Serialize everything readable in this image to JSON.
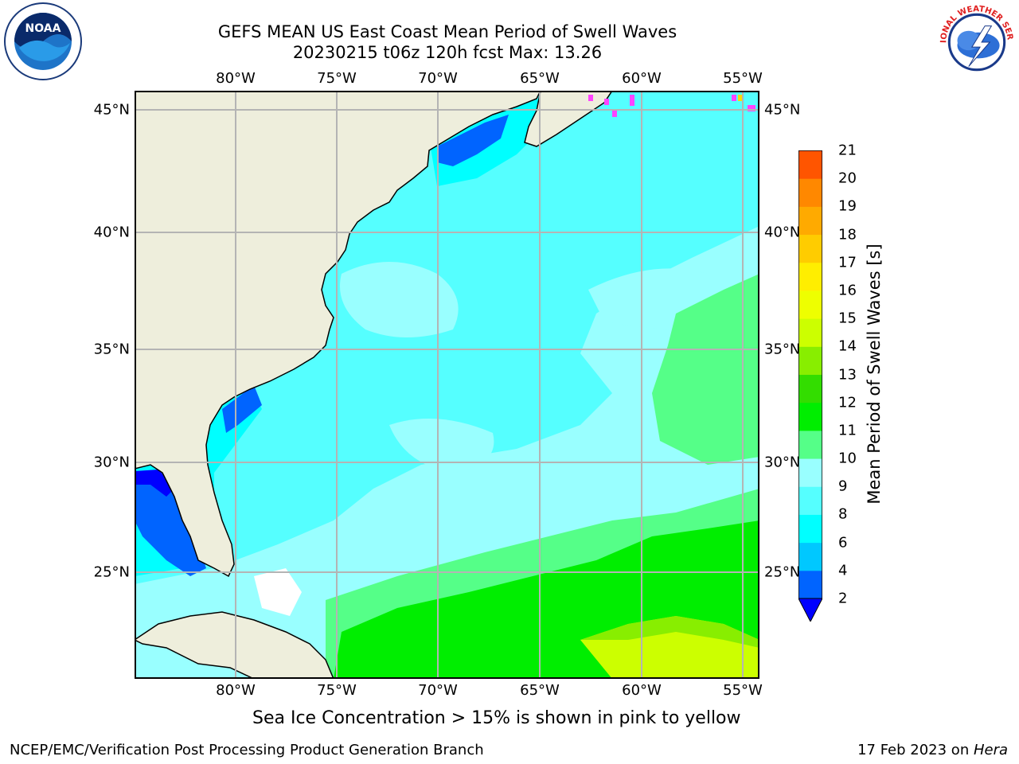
{
  "title": {
    "line1": "GEFS MEAN US East Coast Mean Period of Swell Waves",
    "line2": "20230215 t06z 120h fcst   Max: 13.26"
  },
  "logos": {
    "noaa": {
      "name": "noaa-logo",
      "text": "NOAA"
    },
    "nws": {
      "name": "nws-logo",
      "text": "NATIONAL WEATHER SERVICE"
    }
  },
  "map": {
    "projection": "cylindrical",
    "lon_range": [
      -85,
      -54
    ],
    "lat_range": [
      20.5,
      45.8
    ],
    "lon_ticks": [
      "80°W",
      "75°W",
      "70°W",
      "65°W",
      "60°W",
      "55°W"
    ],
    "lat_ticks": [
      "45°N",
      "40°N",
      "35°N",
      "30°N",
      "25°N"
    ],
    "grid": true,
    "colors": {
      "land": "#eeeedc",
      "frame": "#000000",
      "grid": "#b4b4b4"
    }
  },
  "colorbar": {
    "label": "Mean Period of Swell Waves [s]",
    "ticks": [
      "2",
      "4",
      "6",
      "8",
      "9",
      "10",
      "11",
      "12",
      "13",
      "14",
      "15",
      "16",
      "17",
      "18",
      "19",
      "20",
      "21"
    ],
    "colors": [
      "#0064ff",
      "#00c8ff",
      "#00ffff",
      "#55ffff",
      "#99ffff",
      "#55ff88",
      "#00ee00",
      "#33dd00",
      "#88ee00",
      "#ccff00",
      "#eeff00",
      "#ffee00",
      "#ffcc00",
      "#ffaa00",
      "#ff8800",
      "#ff5500",
      "#ff2200",
      "#ff0000"
    ],
    "under_color": "#0000ff"
  },
  "sea_ice_note": "Sea Ice Concentration > 15% is shown in pink to yellow",
  "footer": {
    "left": "NCEP/EMC/Verification Post Processing Product Generation Branch",
    "right_date": "17 Feb 2023 on ",
    "right_machine": "Hera"
  }
}
